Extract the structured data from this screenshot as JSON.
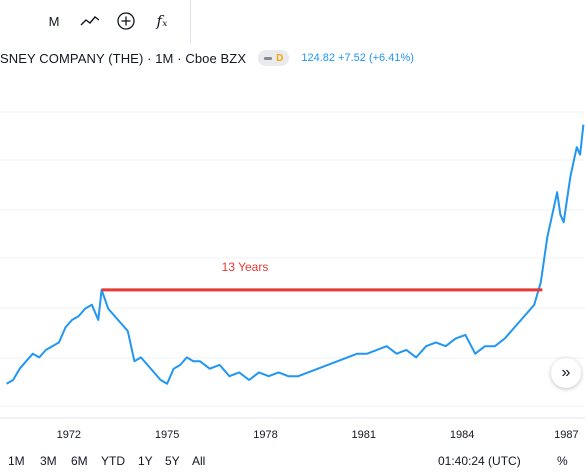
{
  "toolbar": {
    "interval_label": "M",
    "indicator_glyph": "fₓ"
  },
  "header": {
    "symbol": "SNEY COMPANY (THE) · 1M · Cboe BZX",
    "dot_label": "D",
    "price": "124.82",
    "change": "+7.52 (+6.41%)",
    "quote_color": "#2196f3"
  },
  "annotation": {
    "label": "13 Years",
    "color": "#e53935"
  },
  "chart_data": {
    "type": "line",
    "title": "",
    "xlabel": "",
    "ylabel": "",
    "x_ticks": [
      "1972",
      "1975",
      "1978",
      "1981",
      "1984",
      "1987"
    ],
    "x": [
      1970.1,
      1970.3,
      1970.5,
      1970.7,
      1970.9,
      1971.1,
      1971.3,
      1971.5,
      1971.7,
      1971.9,
      1972.1,
      1972.3,
      1972.5,
      1972.7,
      1972.9,
      1973.0,
      1973.2,
      1973.4,
      1973.6,
      1973.8,
      1974.0,
      1974.2,
      1974.4,
      1974.6,
      1974.8,
      1975.0,
      1975.2,
      1975.4,
      1975.6,
      1975.8,
      1976.0,
      1976.3,
      1976.6,
      1976.9,
      1977.2,
      1977.5,
      1977.8,
      1978.1,
      1978.4,
      1978.7,
      1979.0,
      1979.3,
      1979.6,
      1979.9,
      1980.2,
      1980.5,
      1980.8,
      1981.1,
      1981.4,
      1981.7,
      1982.0,
      1982.3,
      1982.6,
      1982.9,
      1983.2,
      1983.5,
      1983.8,
      1984.1,
      1984.4,
      1984.7,
      1985.0,
      1985.3,
      1985.6,
      1985.9,
      1986.2,
      1986.4,
      1986.6,
      1986.8,
      1986.9,
      1987.0,
      1987.1,
      1987.2,
      1987.3,
      1987.4,
      1987.5,
      1987.6,
      1987.7
    ],
    "values": [
      13.5,
      14.0,
      15.5,
      16.5,
      17.5,
      17.0,
      18.0,
      18.5,
      19.0,
      21.0,
      22.0,
      22.5,
      23.5,
      24.0,
      22.0,
      26.0,
      23.5,
      22.5,
      21.5,
      20.5,
      16.5,
      17.0,
      16.0,
      15.0,
      14.0,
      13.5,
      15.5,
      16.0,
      17.0,
      16.5,
      16.5,
      15.5,
      16.0,
      14.5,
      15.0,
      14.0,
      15.0,
      14.5,
      15.0,
      14.5,
      14.5,
      15.0,
      15.5,
      16.0,
      16.5,
      17.0,
      17.5,
      17.5,
      18.0,
      18.5,
      17.5,
      18.0,
      17.0,
      18.5,
      19.0,
      18.5,
      19.5,
      20.0,
      17.5,
      18.5,
      18.5,
      19.5,
      21.0,
      22.5,
      24.0,
      27.0,
      33.0,
      37.0,
      39.0,
      36.0,
      35.0,
      38.0,
      41.0,
      43.0,
      45.0,
      44.0,
      48.0
    ],
    "ylim": [
      10,
      55
    ],
    "color": "#2196f3",
    "grid": true
  },
  "timebar": {
    "ranges": [
      "1M",
      "3M",
      "6M",
      "YTD",
      "1Y",
      "5Y",
      "All"
    ],
    "clock": "01:40:24 (UTC)",
    "percent_label": "%"
  },
  "icons": [
    "line-chart-icon",
    "add-indicator-plus-icon",
    "formula-icon",
    "scroll-right-icon"
  ]
}
